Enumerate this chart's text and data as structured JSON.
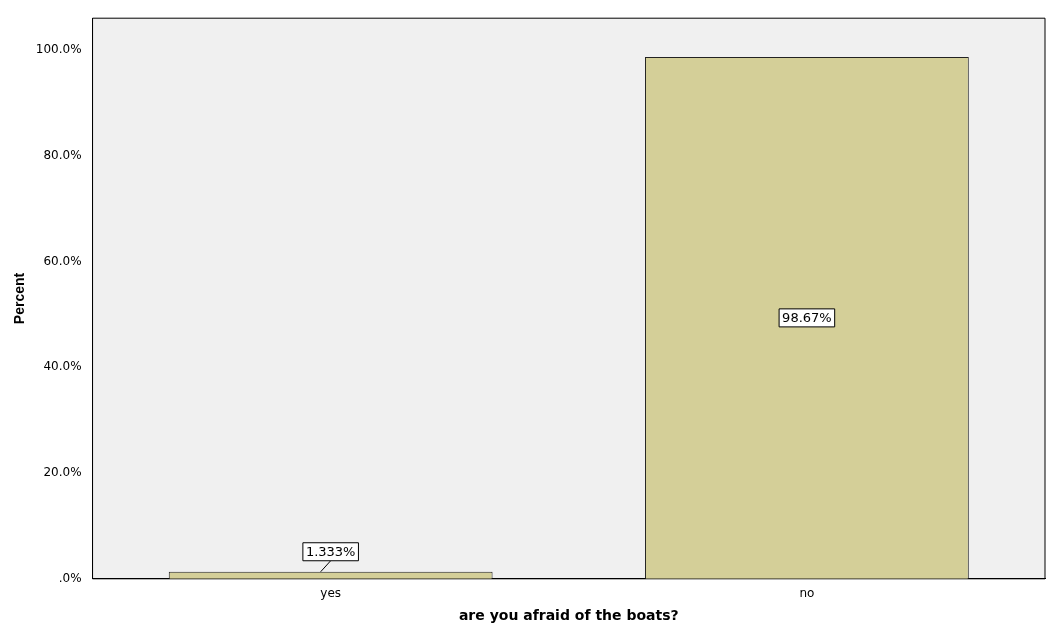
{
  "chart_data": {
    "type": "bar",
    "xlabel": "are you afraid of the boats?",
    "ylabel": "Percent",
    "categories": [
      "yes",
      "no"
    ],
    "values": [
      1.333,
      98.67
    ],
    "value_labels": [
      "1.333%",
      "98.67%"
    ],
    "color": "#d4cf98",
    "ylim": [
      0,
      106
    ],
    "yticks": [
      {
        "value": 0,
        "label": ".0%"
      },
      {
        "value": 20,
        "label": "20.0%"
      },
      {
        "value": 40,
        "label": "40.0%"
      },
      {
        "value": 60,
        "label": "60.0%"
      },
      {
        "value": 80,
        "label": "80.0%"
      },
      {
        "value": 100,
        "label": "100.0%"
      }
    ],
    "grid": false,
    "legend": false
  }
}
